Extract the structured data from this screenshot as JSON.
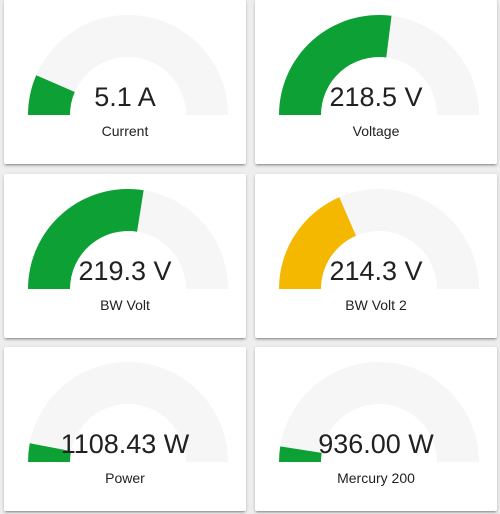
{
  "colors": {
    "track": "#f6f6f6",
    "normal": "#0da035",
    "warning": "#f5b800"
  },
  "gauges": [
    {
      "name": "Current",
      "value_text": "5.1 A",
      "fill_fraction": 0.13,
      "color": "#0da035"
    },
    {
      "name": "Voltage",
      "value_text": "218.5 V",
      "fill_fraction": 0.54,
      "color": "#0da035"
    },
    {
      "name": "BW Volt",
      "value_text": "219.3 V",
      "fill_fraction": 0.55,
      "color": "#0da035"
    },
    {
      "name": "BW Volt 2",
      "value_text": "214.3 V",
      "fill_fraction": 0.37,
      "color": "#f5b800"
    },
    {
      "name": "Power",
      "value_text": "1108.43 W",
      "fill_fraction": 0.06,
      "color": "#0da035"
    },
    {
      "name": "Mercury 200",
      "value_text": "936.00 W",
      "fill_fraction": 0.05,
      "color": "#0da035"
    }
  ]
}
